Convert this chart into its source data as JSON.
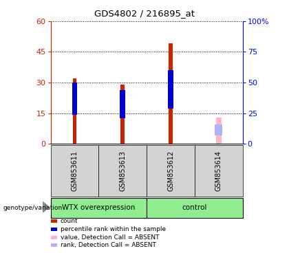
{
  "title": "GDS4802 / 216895_at",
  "samples": [
    "GSM853611",
    "GSM853613",
    "GSM853612",
    "GSM853614"
  ],
  "count_values": [
    32,
    29,
    49,
    0
  ],
  "rank_values": [
    25,
    22,
    30,
    0
  ],
  "absent_value": [
    0,
    0,
    0,
    13
  ],
  "absent_rank": [
    0,
    0,
    0,
    8
  ],
  "ylim_left": [
    0,
    60
  ],
  "ylim_right": [
    0,
    100
  ],
  "yticks_left": [
    0,
    15,
    30,
    45,
    60
  ],
  "yticks_right": [
    0,
    25,
    50,
    75,
    100
  ],
  "bar_color_count": "#cc2200",
  "bar_color_rank": "#0000cc",
  "bar_color_absent_value": "#ffb6c1",
  "bar_color_absent_rank": "#b0b0ff",
  "group_label_wtx": "WTX overexpression",
  "group_label_control": "control",
  "group_bg": "#90EE90",
  "sample_bg": "#d3d3d3",
  "legend_items": [
    {
      "color": "#cc2200",
      "label": "count"
    },
    {
      "color": "#0000cc",
      "label": "percentile rank within the sample"
    },
    {
      "color": "#ffb6c1",
      "label": "value, Detection Call = ABSENT"
    },
    {
      "color": "#b0b0ff",
      "label": "rank, Detection Call = ABSENT"
    }
  ]
}
